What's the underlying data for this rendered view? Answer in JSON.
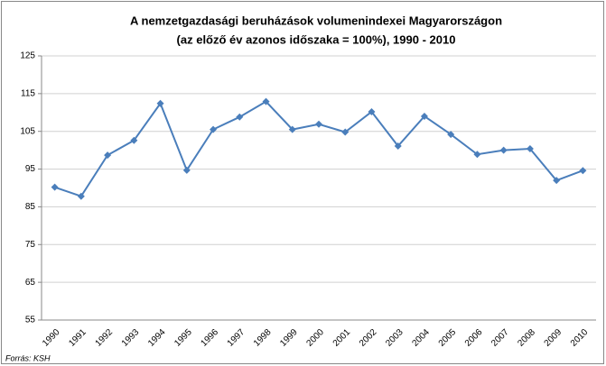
{
  "chart_data": {
    "type": "line",
    "title": [
      "A nemzetgazdasági beruházások volumenindexei Magyarországon",
      "(az előző év azonos időszaka = 100%), 1990 - 2010"
    ],
    "source": "Forrás: KSH",
    "categories": [
      "1990",
      "1991",
      "1992",
      "1993",
      "1994",
      "1995",
      "1996",
      "1997",
      "1998",
      "1999",
      "2000",
      "2001",
      "2002",
      "2003",
      "2004",
      "2005",
      "2006",
      "2007",
      "2008",
      "2009",
      "2010"
    ],
    "series": [
      {
        "color": "#4a7ebb",
        "values": [
          90.2,
          87.8,
          98.7,
          102.6,
          112.4,
          94.7,
          105.5,
          108.8,
          112.9,
          105.5,
          106.9,
          104.8,
          110.2,
          101.1,
          109.0,
          104.2,
          98.9,
          100.0,
          100.4,
          92.0,
          94.6
        ]
      }
    ],
    "ylim": [
      55,
      125
    ],
    "yticks": [
      55,
      65,
      75,
      85,
      95,
      105,
      115,
      125
    ],
    "grid": true
  }
}
